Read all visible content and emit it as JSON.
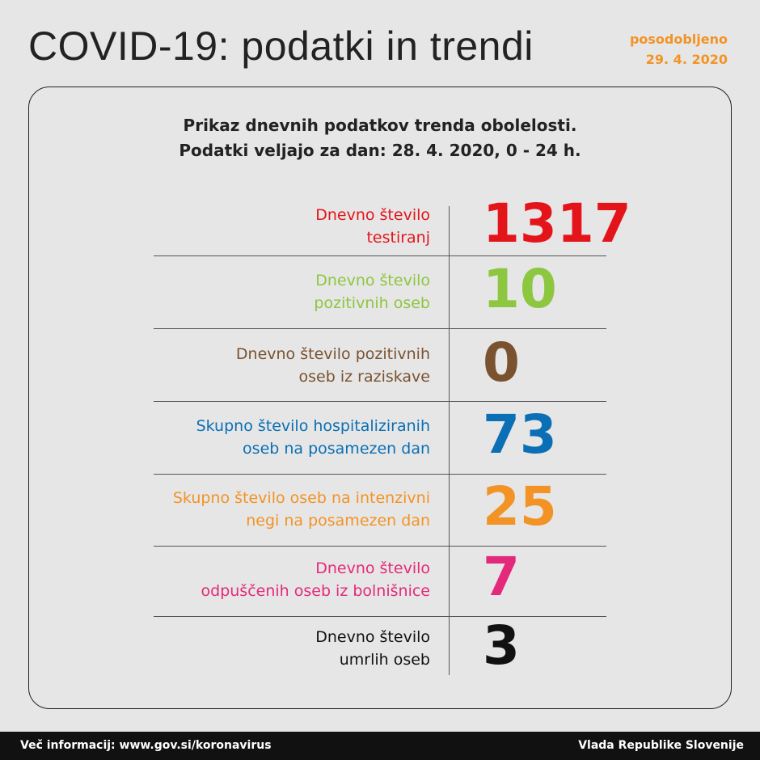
{
  "header": {
    "title": "COVID-19: podatki in trendi",
    "updated_label": "posodobljeno",
    "updated_date": "29. 4. 2020"
  },
  "subtitle": [
    "Prikaz dnevnih podatkov trenda obolelosti.",
    "Podatki veljajo za dan: 28. 4. 2020, 0 - 24 h."
  ],
  "rows": [
    {
      "label": [
        "Dnevno število",
        "testiranj"
      ],
      "value": 1317
    },
    {
      "label": [
        "Dnevno število",
        "pozitivnih oseb"
      ],
      "value": 10
    },
    {
      "label": [
        "Dnevno število pozitivnih",
        "oseb iz raziskave"
      ],
      "value": 0
    },
    {
      "label": [
        "Skupno število hospitaliziranih",
        "oseb na posamezen dan"
      ],
      "value": 73
    },
    {
      "label": [
        "Skupno število oseb na intenzivni",
        "negi na posamezen dan"
      ],
      "value": 25
    },
    {
      "label": [
        "Dnevno število",
        "odpuščenih oseb iz bolnišnice"
      ],
      "value": 7
    },
    {
      "label": [
        "Dnevno število",
        "umrlih oseb"
      ],
      "value": 3
    }
  ],
  "footer": {
    "left": "Več informacij: www.gov.si/koronavirus",
    "right": "Vlada Republike Slovenije"
  }
}
